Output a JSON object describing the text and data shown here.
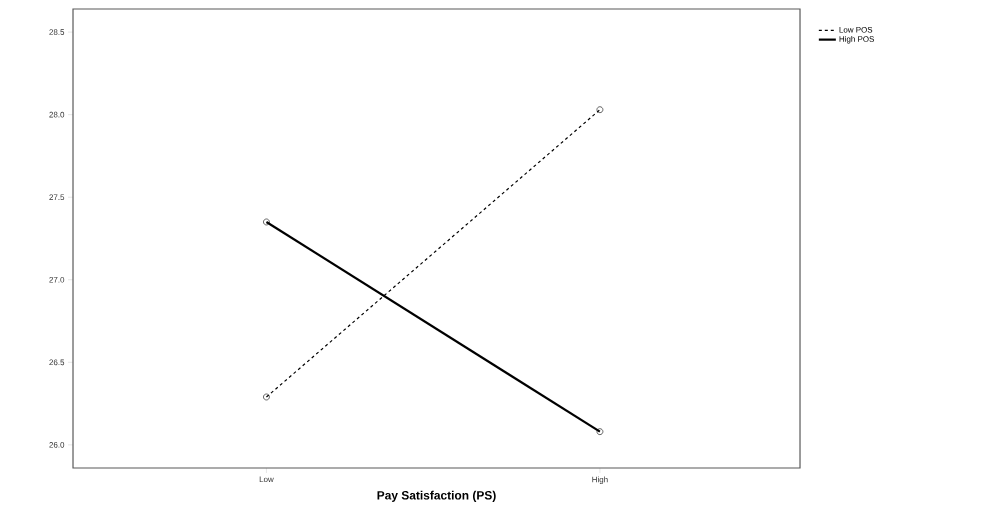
{
  "chart_data": {
    "type": "line",
    "xlabel": "Pay Satisfaction (PS)",
    "categories": [
      "Low",
      "High"
    ],
    "series": [
      {
        "name": "Low POS",
        "color": "#000000",
        "line_style": "dashed",
        "values": [
          26.29,
          28.03
        ]
      },
      {
        "name": "High POS",
        "color": "#000000",
        "line_style": "solid",
        "values": [
          27.35,
          26.08
        ]
      }
    ],
    "ylim": [
      25.86,
      28.64
    ],
    "yticks": [
      {
        "value": 26.0,
        "label": "26.0"
      },
      {
        "value": 26.5,
        "label": "26.5"
      },
      {
        "value": 27.0,
        "label": "27.0"
      },
      {
        "value": 27.5,
        "label": "27.5"
      },
      {
        "value": 28.0,
        "label": "28.0"
      },
      {
        "value": 28.5,
        "label": "28.5"
      }
    ],
    "marker": "circle",
    "legend": "top right",
    "grid": false
  }
}
